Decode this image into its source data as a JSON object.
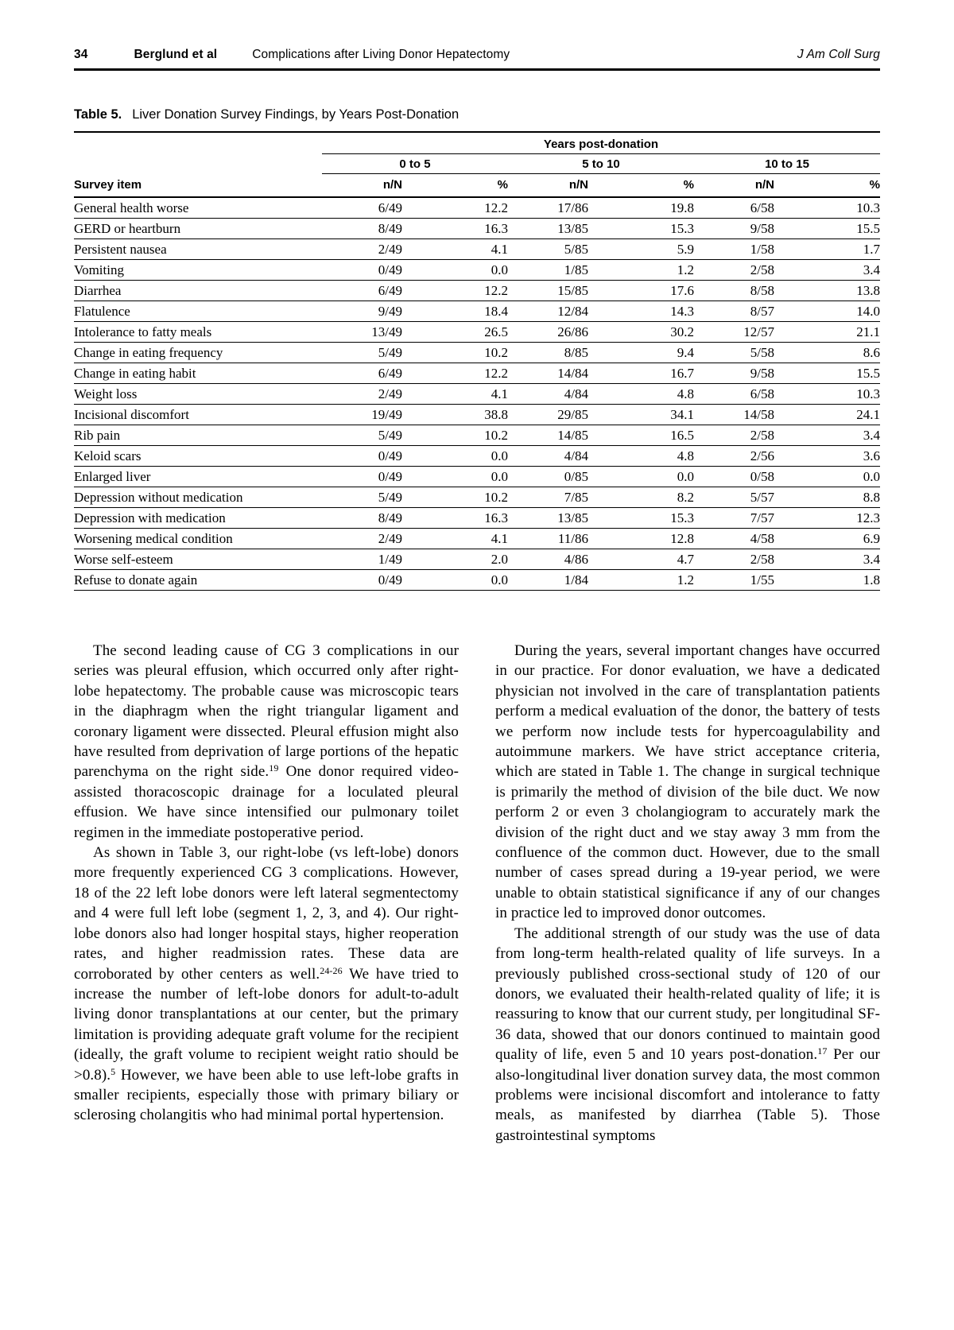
{
  "header": {
    "page_number": "34",
    "authors": "Berglund et al",
    "article_title": "Complications after Living Donor Hepatectomy",
    "journal": "J Am Coll Surg"
  },
  "table": {
    "label": "Table 5.",
    "caption": "Liver Donation Survey Findings, by Years Post-Donation",
    "spanner": "Years post-donation",
    "groups": [
      "0 to 5",
      "5 to 10",
      "10 to 15"
    ],
    "col_item": "Survey item",
    "col_n": "n/N",
    "col_pct": "%",
    "rows": [
      {
        "item": "General health worse",
        "values": [
          "6/49",
          "12.2",
          "17/86",
          "19.8",
          "6/58",
          "10.3"
        ]
      },
      {
        "item": "GERD or heartburn",
        "values": [
          "8/49",
          "16.3",
          "13/85",
          "15.3",
          "9/58",
          "15.5"
        ]
      },
      {
        "item": "Persistent nausea",
        "values": [
          "2/49",
          "4.1",
          "5/85",
          "5.9",
          "1/58",
          "1.7"
        ]
      },
      {
        "item": "Vomiting",
        "values": [
          "0/49",
          "0.0",
          "1/85",
          "1.2",
          "2/58",
          "3.4"
        ]
      },
      {
        "item": "Diarrhea",
        "values": [
          "6/49",
          "12.2",
          "15/85",
          "17.6",
          "8/58",
          "13.8"
        ]
      },
      {
        "item": "Flatulence",
        "values": [
          "9/49",
          "18.4",
          "12/84",
          "14.3",
          "8/57",
          "14.0"
        ]
      },
      {
        "item": "Intolerance to fatty meals",
        "values": [
          "13/49",
          "26.5",
          "26/86",
          "30.2",
          "12/57",
          "21.1"
        ]
      },
      {
        "item": "Change in eating frequency",
        "values": [
          "5/49",
          "10.2",
          "8/85",
          "9.4",
          "5/58",
          "8.6"
        ]
      },
      {
        "item": "Change in eating habit",
        "values": [
          "6/49",
          "12.2",
          "14/84",
          "16.7",
          "9/58",
          "15.5"
        ]
      },
      {
        "item": "Weight loss",
        "values": [
          "2/49",
          "4.1",
          "4/84",
          "4.8",
          "6/58",
          "10.3"
        ]
      },
      {
        "item": "Incisional discomfort",
        "values": [
          "19/49",
          "38.8",
          "29/85",
          "34.1",
          "14/58",
          "24.1"
        ]
      },
      {
        "item": "Rib pain",
        "values": [
          "5/49",
          "10.2",
          "14/85",
          "16.5",
          "2/58",
          "3.4"
        ]
      },
      {
        "item": "Keloid scars",
        "values": [
          "0/49",
          "0.0",
          "4/84",
          "4.8",
          "2/56",
          "3.6"
        ]
      },
      {
        "item": "Enlarged liver",
        "values": [
          "0/49",
          "0.0",
          "0/85",
          "0.0",
          "0/58",
          "0.0"
        ]
      },
      {
        "item": "Depression without medication",
        "values": [
          "5/49",
          "10.2",
          "7/85",
          "8.2",
          "5/57",
          "8.8"
        ]
      },
      {
        "item": "Depression with medication",
        "values": [
          "8/49",
          "16.3",
          "13/85",
          "15.3",
          "7/57",
          "12.3"
        ]
      },
      {
        "item": "Worsening medical condition",
        "values": [
          "2/49",
          "4.1",
          "11/86",
          "12.8",
          "4/58",
          "6.9"
        ]
      },
      {
        "item": "Worse self-esteem",
        "values": [
          "1/49",
          "2.0",
          "4/86",
          "4.7",
          "2/58",
          "3.4"
        ]
      },
      {
        "item": "Refuse to donate again",
        "values": [
          "0/49",
          "0.0",
          "1/84",
          "1.2",
          "1/55",
          "1.8"
        ]
      }
    ]
  },
  "body_columns": {
    "left": [
      {
        "runs": [
          {
            "t": "The second leading cause of CG 3 complications in our series was pleural effusion, which occurred only after right-lobe hepatectomy. The probable cause was microscopic tears in the diaphragm when the right triangular ligament and coronary ligament were dissected. Pleural effusion might also have resulted from deprivation of large portions of the hepatic parenchyma on the right side."
          },
          {
            "sup": "19"
          },
          {
            "t": " One donor required video-assisted thoracoscopic drainage for a loculated pleural effusion. We have since intensified our pulmonary toilet regimen in the immediate postoperative period."
          }
        ]
      },
      {
        "runs": [
          {
            "t": "As shown in Table 3, our right-lobe (vs left-lobe) donors more frequently experienced CG 3 complications. However, 18 of the 22 left lobe donors were left lateral segmentectomy and 4 were full left lobe (segment 1, 2, 3, and 4). Our right-lobe donors also had longer hospital stays, higher reoperation rates, and higher readmission rates. These data are corroborated by other centers as well."
          },
          {
            "sup": "24-26"
          },
          {
            "t": " We have tried to increase the number of left-lobe donors for adult-to-adult living donor transplantations at our center, but the primary limitation is providing adequate graft volume for the recipient (ideally, the graft volume to recipient weight ratio should be >0.8)."
          },
          {
            "sup": "5"
          },
          {
            "t": " However, we have been able to use left-lobe grafts in smaller recipients, especially those with primary biliary or sclerosing cholangitis who had minimal portal hypertension."
          }
        ]
      }
    ],
    "right": [
      {
        "runs": [
          {
            "t": "During the years, several important changes have occurred in our practice. For donor evaluation, we have a dedicated physician not involved in the care of transplantation patients perform a medical evaluation of the donor, the battery of tests we perform now include tests for hypercoagulability and autoimmune markers. We have strict acceptance criteria, which are stated in Table 1. The change in surgical technique is primarily the method of division of the bile duct. We now perform 2 or even 3 cholangiogram to accurately mark the division of the right duct and we stay away 3 mm from the confluence of the common duct. However, due to the small number of cases spread during a 19-year period, we were unable to obtain statistical significance if any of our changes in practice led to improved donor outcomes."
          }
        ]
      },
      {
        "runs": [
          {
            "t": "The additional strength of our study was the use of data from long-term health-related quality of life surveys. In a previously published cross-sectional study of 120 of our donors, we evaluated their health-related quality of life; it is reassuring to know that our current study, per longitudinal SF-36 data, showed that our donors continued to maintain good quality of life, even 5 and 10 years post-donation."
          },
          {
            "sup": "17"
          },
          {
            "t": " Per our also-longitudinal liver donation survey data, the most common problems were incisional discomfort and intolerance to fatty meals, as manifested by diarrhea (Table 5). Those gastrointestinal symptoms"
          }
        ]
      }
    ]
  }
}
